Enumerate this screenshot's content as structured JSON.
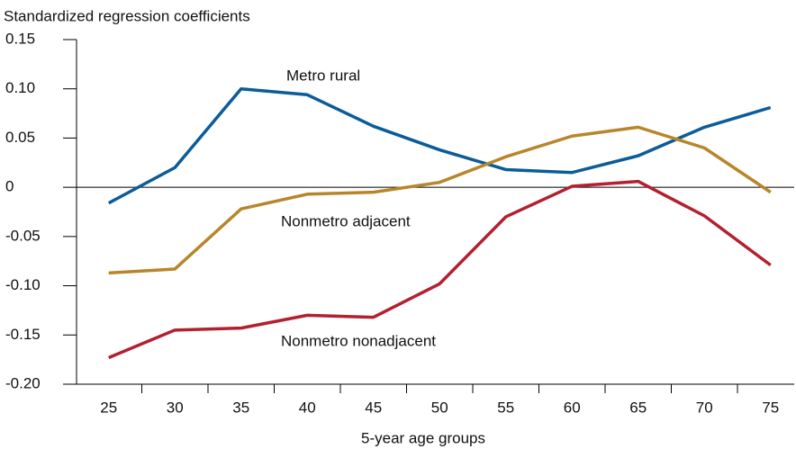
{
  "chart_data": {
    "type": "line",
    "y_axis_title": "Standardized regression coefficients",
    "x_axis_title": "5-year age groups",
    "categories": [
      "25",
      "30",
      "35",
      "40",
      "45",
      "50",
      "55",
      "60",
      "65",
      "70",
      "75"
    ],
    "series": [
      {
        "name": "Metro rural",
        "color": "#0b5c99",
        "values": [
          -0.016,
          0.02,
          0.1,
          0.094,
          0.062,
          0.038,
          0.018,
          0.015,
          0.032,
          0.061,
          0.081
        ]
      },
      {
        "name": "Nonmetro adjacent",
        "color": "#b8862a",
        "values": [
          -0.087,
          -0.083,
          -0.022,
          -0.007,
          -0.005,
          0.005,
          0.031,
          0.052,
          0.061,
          0.04,
          -0.005
        ]
      },
      {
        "name": "Nonmetro nonadjacent",
        "color": "#b3202f",
        "values": [
          -0.173,
          -0.145,
          -0.143,
          -0.13,
          -0.132,
          -0.098,
          -0.03,
          0.001,
          0.006,
          -0.029,
          -0.079
        ]
      }
    ],
    "ylim": [
      -0.2,
      0.15
    ],
    "yticks": [
      0.15,
      {
        "value": 0.1,
        "label": "0.10"
      },
      0.05,
      0,
      -0.05,
      {
        "value": -0.1,
        "label": "-0.10"
      },
      -0.15,
      {
        "value": -0.2,
        "label": "-0.20"
      }
    ]
  }
}
